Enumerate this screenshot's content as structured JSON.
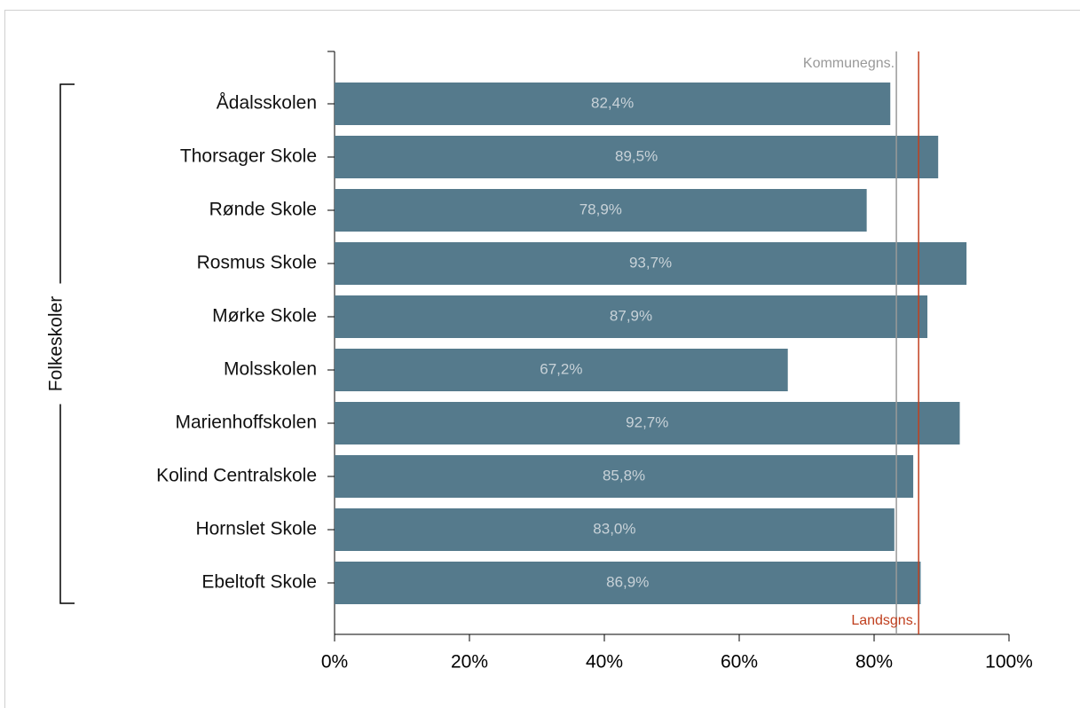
{
  "chart_data": {
    "type": "bar",
    "orientation": "horizontal",
    "group_label": "Folkeskoler",
    "categories": [
      "Ådalsskolen",
      "Thorsager Skole",
      "Rønde Skole",
      "Rosmus Skole",
      "Mørke Skole",
      "Molsskolen",
      "Marienhoffskolen",
      "Kolind Centralskole",
      "Hornslet Skole",
      "Ebeltoft Skole"
    ],
    "values": [
      82.4,
      89.5,
      78.9,
      93.7,
      87.9,
      67.2,
      92.7,
      85.8,
      83.0,
      86.9
    ],
    "value_labels": [
      "82,4%",
      "89,5%",
      "78,9%",
      "93,7%",
      "87,9%",
      "67,2%",
      "92,7%",
      "85,8%",
      "83,0%",
      "86,9%"
    ],
    "color": "#557a8c",
    "xlim": [
      0,
      100
    ],
    "xticks": [
      {
        "value": 0,
        "label": "0%"
      },
      {
        "value": 20,
        "label": "20%"
      },
      {
        "value": 40,
        "label": "40%"
      },
      {
        "value": 60,
        "label": "60%"
      },
      {
        "value": 80,
        "label": "80%"
      },
      {
        "value": 100,
        "label": "100%"
      }
    ],
    "reference_lines": [
      {
        "label": "Kommunegns.",
        "value": 83.3,
        "color": "#999999",
        "label_position": "top"
      },
      {
        "label": "Landsgns.",
        "value": 86.6,
        "color": "#c0401f",
        "label_position": "bottom"
      }
    ]
  }
}
